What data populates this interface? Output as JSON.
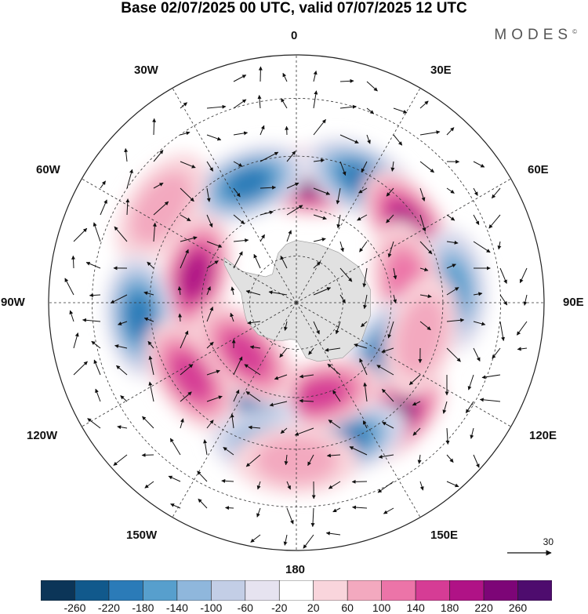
{
  "title": "Base 02/07/2025 00 UTC, valid 07/07/2025 12 UTC",
  "brand": "MODES",
  "brand_mark": "©",
  "longitude_labels": {
    "top": "0",
    "top_left": "30W",
    "top_right": "30E",
    "upper_left": "60W",
    "upper_right": "60E",
    "left": "90W",
    "right": "90E",
    "lower_left": "120W",
    "lower_right": "120E",
    "bottom_left": "150W",
    "bottom_right": "150E",
    "bottom": "180"
  },
  "reference_vector": "30",
  "colorbar": {
    "ticks": [
      "-260",
      "-220",
      "-180",
      "-140",
      "-100",
      "-60",
      "-20",
      "20",
      "60",
      "100",
      "140",
      "180",
      "220",
      "260"
    ],
    "colors": [
      "#0b3558",
      "#11598c",
      "#2b7bb8",
      "#579fcd",
      "#8fb7dc",
      "#c3cee6",
      "#e6e3f0",
      "#ffffff",
      "#f9d5dc",
      "#f3a9bf",
      "#ec74a8",
      "#d63c95",
      "#b01286",
      "#7d0577",
      "#4e0c6e"
    ]
  },
  "map": {
    "projection": "south polar stereographic",
    "land_color": "#e1e1e1",
    "anomaly_centers": [
      {
        "lon": 5,
        "lat": -52,
        "value": 220
      },
      {
        "lon": -22,
        "lat": -50,
        "value": -200
      },
      {
        "lon": 28,
        "lat": -47,
        "value": -200
      },
      {
        "lon": 55,
        "lat": -48,
        "value": 180
      },
      {
        "lon": -55,
        "lat": -40,
        "value": 60
      },
      {
        "lon": -75,
        "lat": -57,
        "value": 200
      },
      {
        "lon": -95,
        "lat": -42,
        "value": -180
      },
      {
        "lon": 85,
        "lat": -42,
        "value": -140
      },
      {
        "lon": 80,
        "lat": -55,
        "value": 100
      },
      {
        "lon": 120,
        "lat": -58,
        "value": -200
      },
      {
        "lon": 140,
        "lat": -44,
        "value": 240
      },
      {
        "lon": 160,
        "lat": -45,
        "value": -180
      },
      {
        "lon": 165,
        "lat": -60,
        "value": 140
      },
      {
        "lon": -150,
        "lat": -55,
        "value": -180
      },
      {
        "lon": -125,
        "lat": -50,
        "value": 160
      },
      {
        "lon": -135,
        "lat": -67,
        "value": 140
      },
      {
        "lon": -170,
        "lat": -45,
        "value": -140
      },
      {
        "lon": 180,
        "lat": -42,
        "value": 60
      },
      {
        "lon": 105,
        "lat": -50,
        "value": 80
      }
    ]
  }
}
